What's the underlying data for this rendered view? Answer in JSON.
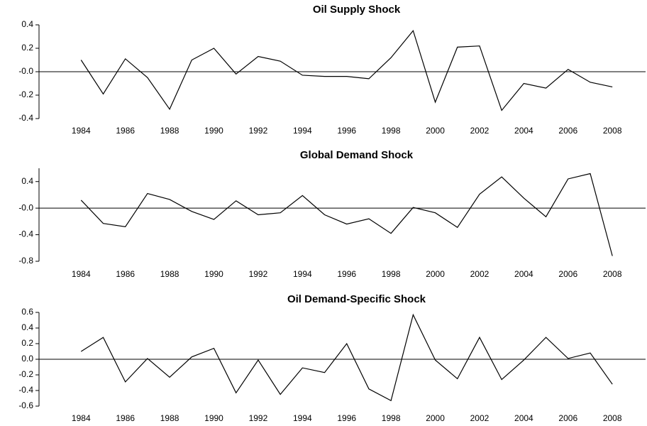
{
  "chart_data": [
    {
      "type": "line",
      "title": "Oil Supply Shock",
      "color": "#000000",
      "x": [
        1984,
        1985,
        1986,
        1987,
        1988,
        1989,
        1990,
        1991,
        1992,
        1993,
        1994,
        1995,
        1996,
        1997,
        1998,
        1999,
        2000,
        2001,
        2002,
        2003,
        2004,
        2005,
        2006,
        2007,
        2008
      ],
      "values": [
        0.1,
        -0.19,
        0.11,
        -0.05,
        -0.32,
        0.1,
        0.2,
        -0.02,
        0.13,
        0.09,
        -0.03,
        -0.04,
        -0.04,
        -0.06,
        0.12,
        0.35,
        -0.26,
        0.21,
        0.22,
        -0.33,
        -0.1,
        -0.14,
        0.02,
        -0.09,
        -0.13
      ],
      "xlim": [
        1982.1,
        2009.5
      ],
      "xticks": [
        1984,
        1986,
        1988,
        1990,
        1992,
        1994,
        1996,
        1998,
        2000,
        2002,
        2004,
        2006,
        2008
      ],
      "ylim": [
        -0.4,
        0.4
      ],
      "yticks": [
        0.4,
        0.2,
        {
          "value": 0,
          "label": "-0.0"
        },
        -0.2,
        -0.4
      ]
    },
    {
      "type": "line",
      "title": "Global Demand Shock",
      "color": "#000000",
      "x": [
        1984,
        1985,
        1986,
        1987,
        1988,
        1989,
        1990,
        1991,
        1992,
        1993,
        1994,
        1995,
        1996,
        1997,
        1998,
        1999,
        2000,
        2001,
        2002,
        2003,
        2004,
        2005,
        2006,
        2007,
        2008
      ],
      "values": [
        0.12,
        -0.23,
        -0.28,
        0.22,
        0.13,
        -0.05,
        -0.17,
        0.11,
        -0.1,
        -0.07,
        0.19,
        -0.1,
        -0.24,
        -0.16,
        -0.38,
        0.01,
        -0.07,
        -0.29,
        0.21,
        0.47,
        0.15,
        -0.13,
        0.44,
        0.52,
        -0.72
      ],
      "xlim": [
        1982.1,
        2009.5
      ],
      "xticks": [
        1984,
        1986,
        1988,
        1990,
        1992,
        1994,
        1996,
        1998,
        2000,
        2002,
        2004,
        2006,
        2008
      ],
      "ylim": [
        -0.8,
        0.6
      ],
      "yticks": [
        0.4,
        {
          "value": 0,
          "label": "-0.0"
        },
        -0.4,
        -0.8
      ]
    },
    {
      "type": "line",
      "title": "Oil Demand-Specific Shock",
      "color": "#000000",
      "x": [
        1984,
        1985,
        1986,
        1987,
        1988,
        1989,
        1990,
        1991,
        1992,
        1993,
        1994,
        1995,
        1996,
        1997,
        1998,
        1999,
        2000,
        2001,
        2002,
        2003,
        2004,
        2005,
        2006,
        2007,
        2008
      ],
      "values": [
        0.1,
        0.28,
        -0.29,
        0.01,
        -0.23,
        0.03,
        0.14,
        -0.43,
        -0.01,
        -0.45,
        -0.11,
        -0.17,
        0.2,
        -0.38,
        -0.53,
        0.57,
        -0.01,
        -0.25,
        0.28,
        -0.26,
        -0.01,
        0.28,
        0.01,
        0.08,
        -0.32
      ],
      "xlim": [
        1982.1,
        2009.5
      ],
      "xticks": [
        1984,
        1986,
        1988,
        1990,
        1992,
        1994,
        1996,
        1998,
        2000,
        2002,
        2004,
        2006,
        2008
      ],
      "ylim": [
        -0.6,
        0.6
      ],
      "yticks": [
        {
          "value": 0.6,
          "label": "0.6"
        },
        0.4,
        0.2,
        {
          "value": 0,
          "label": "0.0"
        },
        -0.2,
        -0.4,
        -0.6
      ]
    }
  ]
}
